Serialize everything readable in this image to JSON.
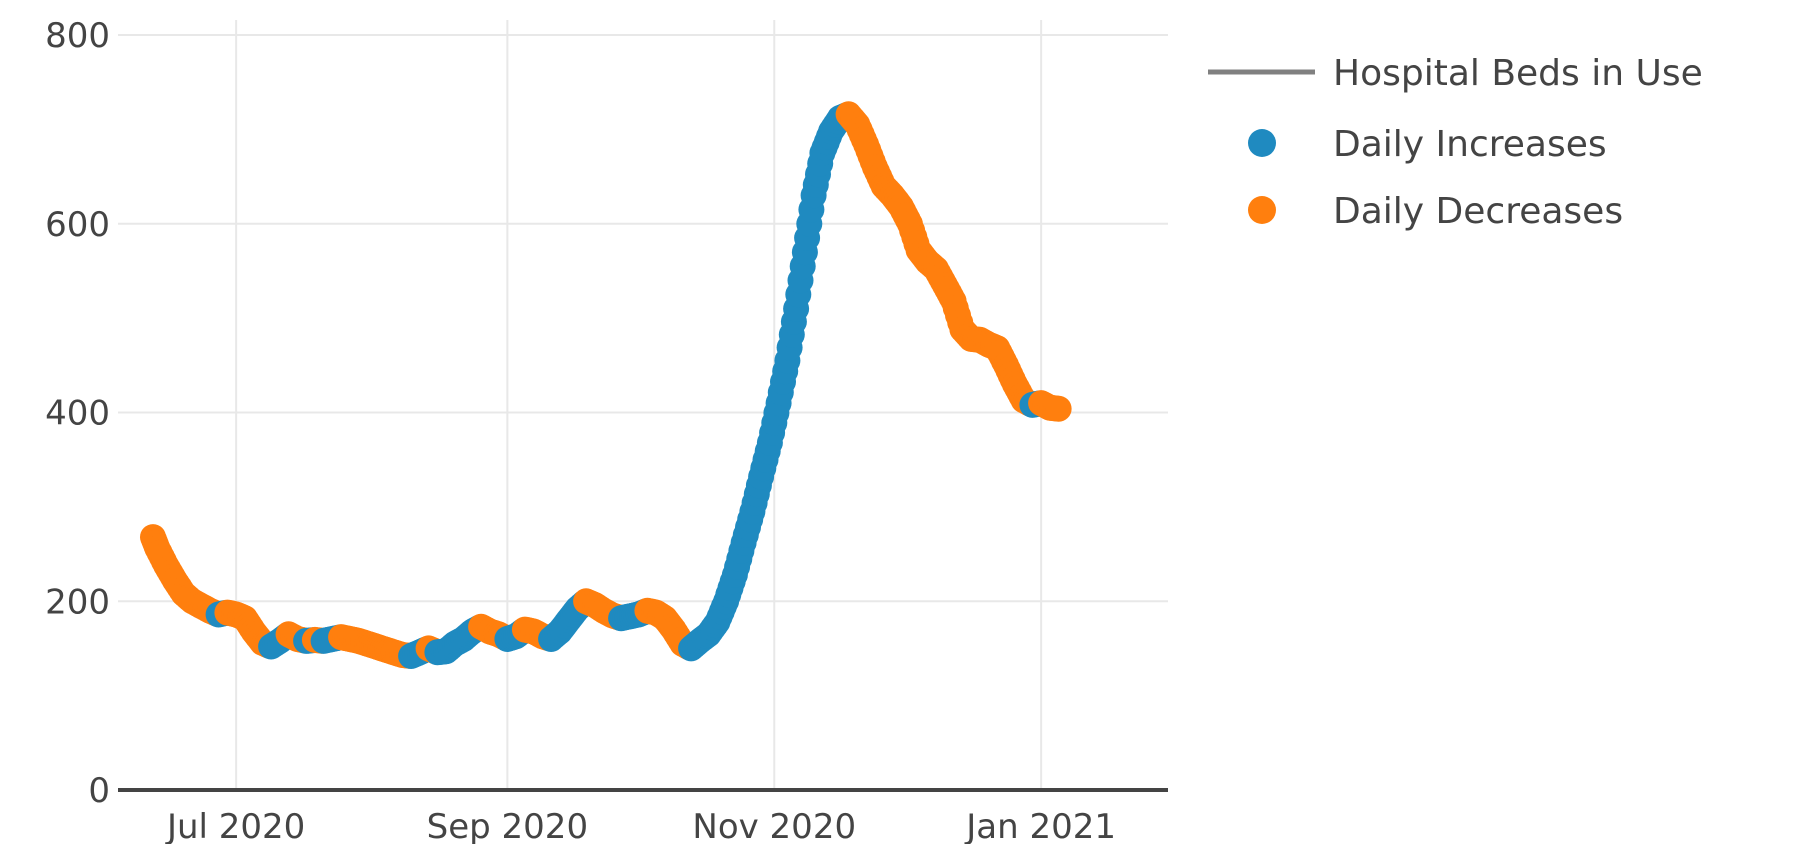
{
  "chart_data": {
    "type": "scatter",
    "title": "",
    "xlabel": "",
    "ylabel": "",
    "ylim": [
      0,
      800
    ],
    "xlim": [
      "2020-06-04",
      "2021-01-30"
    ],
    "yticks": [
      0,
      200,
      400,
      600,
      800
    ],
    "xticks": [
      {
        "date": "2020-07-01",
        "label": "Jul 2020"
      },
      {
        "date": "2020-09-01",
        "label": "Sep 2020"
      },
      {
        "date": "2020-11-01",
        "label": "Nov 2020"
      },
      {
        "date": "2021-01-01",
        "label": "Jan 2021"
      }
    ],
    "grid": true,
    "legend_position": "top-right",
    "colors": {
      "line": "#808080",
      "increase": "#1f8ac0",
      "decrease": "#ff7f0e",
      "grid": "#e8e8e8",
      "axis": "#444444"
    },
    "series": [
      {
        "name": "Hospital Beds in Use",
        "kind": "line",
        "points": [
          [
            "2020-06-12",
            268
          ],
          [
            "2020-06-13",
            256
          ],
          [
            "2020-06-15",
            238
          ],
          [
            "2020-06-17",
            222
          ],
          [
            "2020-06-19",
            208
          ],
          [
            "2020-06-21",
            200
          ],
          [
            "2020-06-23",
            195
          ],
          [
            "2020-06-25",
            190
          ],
          [
            "2020-06-27",
            186
          ],
          [
            "2020-06-29",
            188
          ],
          [
            "2020-07-01",
            186
          ],
          [
            "2020-07-03",
            182
          ],
          [
            "2020-07-05",
            168
          ],
          [
            "2020-07-07",
            156
          ],
          [
            "2020-07-09",
            152
          ],
          [
            "2020-07-11",
            158
          ],
          [
            "2020-07-13",
            165
          ],
          [
            "2020-07-15",
            160
          ],
          [
            "2020-07-17",
            158
          ],
          [
            "2020-07-19",
            159
          ],
          [
            "2020-07-21",
            158
          ],
          [
            "2020-07-23",
            160
          ],
          [
            "2020-07-25",
            162
          ],
          [
            "2020-07-27",
            160
          ],
          [
            "2020-07-29",
            158
          ],
          [
            "2020-07-31",
            155
          ],
          [
            "2020-08-02",
            152
          ],
          [
            "2020-08-04",
            149
          ],
          [
            "2020-08-06",
            146
          ],
          [
            "2020-08-08",
            143
          ],
          [
            "2020-08-10",
            142
          ],
          [
            "2020-08-12",
            146
          ],
          [
            "2020-08-14",
            150
          ],
          [
            "2020-08-16",
            146
          ],
          [
            "2020-08-18",
            147
          ],
          [
            "2020-08-20",
            155
          ],
          [
            "2020-08-22",
            160
          ],
          [
            "2020-08-24",
            168
          ],
          [
            "2020-08-26",
            173
          ],
          [
            "2020-08-28",
            168
          ],
          [
            "2020-08-30",
            165
          ],
          [
            "2020-09-01",
            160
          ],
          [
            "2020-09-03",
            163
          ],
          [
            "2020-09-05",
            170
          ],
          [
            "2020-09-07",
            168
          ],
          [
            "2020-09-09",
            163
          ],
          [
            "2020-09-11",
            160
          ],
          [
            "2020-09-13",
            168
          ],
          [
            "2020-09-15",
            180
          ],
          [
            "2020-09-17",
            192
          ],
          [
            "2020-09-19",
            200
          ],
          [
            "2020-09-21",
            196
          ],
          [
            "2020-09-23",
            190
          ],
          [
            "2020-09-25",
            185
          ],
          [
            "2020-09-27",
            182
          ],
          [
            "2020-09-29",
            184
          ],
          [
            "2020-10-01",
            186
          ],
          [
            "2020-10-03",
            190
          ],
          [
            "2020-10-05",
            188
          ],
          [
            "2020-10-07",
            182
          ],
          [
            "2020-10-09",
            170
          ],
          [
            "2020-10-11",
            155
          ],
          [
            "2020-10-13",
            150
          ],
          [
            "2020-10-15",
            158
          ],
          [
            "2020-10-17",
            165
          ],
          [
            "2020-10-19",
            178
          ],
          [
            "2020-10-21",
            200
          ],
          [
            "2020-10-23",
            228
          ],
          [
            "2020-10-25",
            262
          ],
          [
            "2020-10-27",
            295
          ],
          [
            "2020-10-29",
            332
          ],
          [
            "2020-10-31",
            368
          ],
          [
            "2020-11-02",
            410
          ],
          [
            "2020-11-04",
            455
          ],
          [
            "2020-11-06",
            510
          ],
          [
            "2020-11-08",
            570
          ],
          [
            "2020-11-10",
            630
          ],
          [
            "2020-11-12",
            675
          ],
          [
            "2020-11-14",
            698
          ],
          [
            "2020-11-16",
            712
          ],
          [
            "2020-11-18",
            716
          ],
          [
            "2020-11-20",
            705
          ],
          [
            "2020-11-22",
            684
          ],
          [
            "2020-11-24",
            660
          ],
          [
            "2020-11-26",
            640
          ],
          [
            "2020-11-28",
            630
          ],
          [
            "2020-11-30",
            618
          ],
          [
            "2020-12-02",
            600
          ],
          [
            "2020-12-04",
            572
          ],
          [
            "2020-12-06",
            560
          ],
          [
            "2020-12-08",
            552
          ],
          [
            "2020-12-10",
            535
          ],
          [
            "2020-12-12",
            518
          ],
          [
            "2020-12-14",
            488
          ],
          [
            "2020-12-16",
            478
          ],
          [
            "2020-12-18",
            477
          ],
          [
            "2020-12-20",
            472
          ],
          [
            "2020-12-22",
            468
          ],
          [
            "2020-12-24",
            450
          ],
          [
            "2020-12-26",
            430
          ],
          [
            "2020-12-28",
            413
          ],
          [
            "2020-12-30",
            408
          ],
          [
            "2021-01-01",
            410
          ],
          [
            "2021-01-03",
            405
          ],
          [
            "2021-01-05",
            404
          ]
        ]
      },
      {
        "name": "Daily Increases",
        "kind": "points",
        "color_key": "increase"
      },
      {
        "name": "Daily Decreases",
        "kind": "points",
        "color_key": "decrease"
      }
    ]
  }
}
